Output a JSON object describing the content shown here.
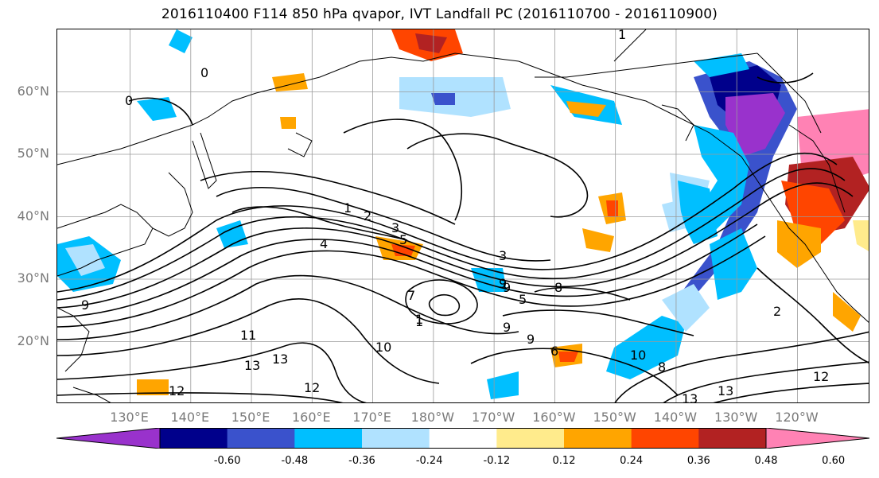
{
  "title": "2016110400 F114 850 hPa qvapor, IVT Landfall PC (2016110700 - 2016110900)",
  "map": {
    "projection": "PlateCarree",
    "lon_range": [
      118,
      252
    ],
    "lat_range": [
      10,
      70
    ],
    "grid": true,
    "lat_labels": [
      "60°N",
      "50°N",
      "40°N",
      "30°N",
      "20°N"
    ],
    "lon_labels": [
      "130°E",
      "140°E",
      "150°E",
      "160°E",
      "170°E",
      "180°W",
      "170°W",
      "160°W",
      "150°W",
      "140°W",
      "130°W",
      "120°W"
    ],
    "contour_labels": [
      "0",
      "0",
      "1",
      "1",
      "1",
      "2",
      "3",
      "4",
      "5",
      "9",
      "9",
      "9",
      "8",
      "5",
      "3",
      "7",
      "1",
      "10",
      "9",
      "6",
      "11",
      "13",
      "13",
      "12",
      "12",
      "12",
      "13",
      "13",
      "8",
      "10",
      "9",
      "2"
    ]
  },
  "colorbar": {
    "colors": [
      "#9932cc",
      "#00008b",
      "#3a52cc",
      "#00bfff",
      "#b0e2ff",
      "#ffffff",
      "#ffeb8c",
      "#ffa500",
      "#ff4500",
      "#b22222",
      "#ff82b4"
    ],
    "ticks": [
      "-0.60",
      "-0.48",
      "-0.36",
      "-0.24",
      "-0.12",
      "0.12",
      "0.24",
      "0.36",
      "0.48",
      "0.60"
    ],
    "extend": "both"
  }
}
